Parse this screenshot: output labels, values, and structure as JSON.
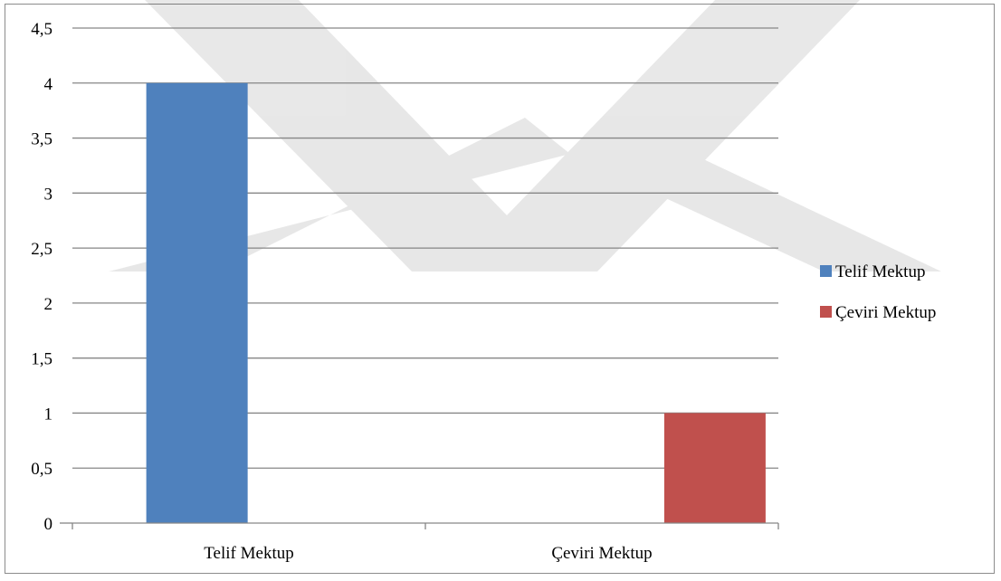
{
  "chart_data": {
    "type": "bar",
    "categories": [
      "Telif Mektup",
      "Çeviri Mektup"
    ],
    "series": [
      {
        "name": "Telif Mektup",
        "values": [
          4,
          null
        ],
        "color": "#4f81bd"
      },
      {
        "name": "Çeviri Mektup",
        "values": [
          null,
          1
        ],
        "color": "#c0504d"
      }
    ],
    "title": "",
    "xlabel": "",
    "ylabel": "",
    "ylim": [
      0,
      4.5
    ],
    "y_ticks": [
      "0",
      "0,5",
      "1",
      "1,5",
      "2",
      "2,5",
      "3",
      "3,5",
      "4",
      "4,5"
    ],
    "grid": true,
    "legend_position": "right"
  },
  "watermark": {
    "description": "faint gray chevron/X watermark behind chart"
  }
}
